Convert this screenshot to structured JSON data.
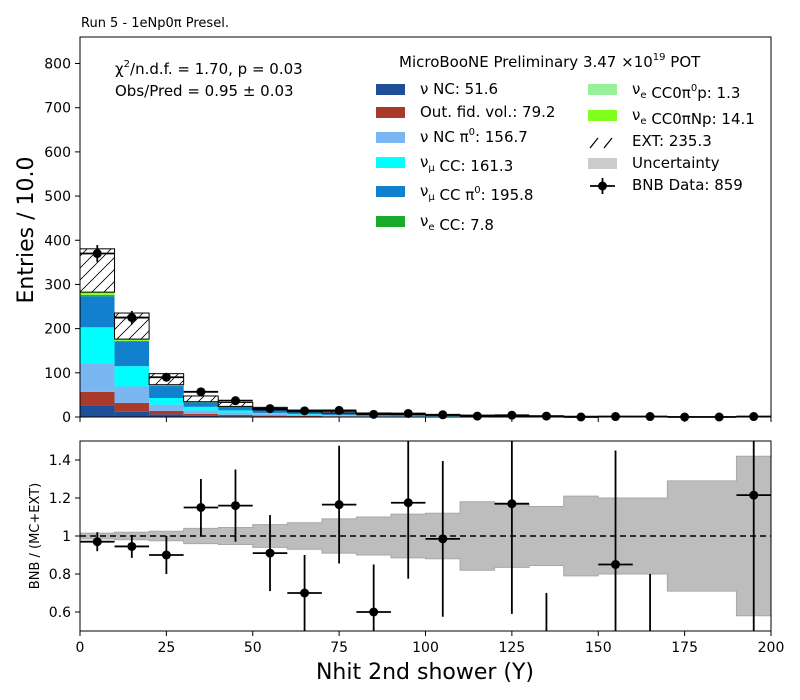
{
  "figure": {
    "run_label": "Run 5 - 1eNp0π Presel.",
    "pot_label": "MicroBooNE Preliminary 3.47 ×10",
    "pot_exponent": "19",
    "pot_unit": " POT",
    "chi2_prefix": "χ",
    "chi2_sup": "2",
    "chi2_rest": "/n.d.f. = 1.70, p = 0.03",
    "obs_pred": "Obs/Pred = 0.95 ± 0.03"
  },
  "chart_data": [
    {
      "type": "bar",
      "stacked": true,
      "ylabel": "Entries / 10.0",
      "xlim": [
        0,
        200
      ],
      "ylim": [
        0,
        860
      ],
      "xticks": [
        0,
        25,
        50,
        75,
        100,
        125,
        150,
        175,
        200
      ],
      "yticks": [
        0,
        100,
        200,
        300,
        400,
        500,
        600,
        700,
        800
      ],
      "bin_edges": [
        0,
        10,
        20,
        30,
        40,
        50,
        60,
        70,
        80,
        90,
        100,
        110,
        120,
        130,
        140,
        150,
        160,
        170,
        180,
        190,
        200
      ],
      "series": [
        {
          "name": "ν NC: 51.6",
          "color": "#1f4e98",
          "values": [
            25,
            12,
            6,
            3,
            2,
            1.2,
            0.8,
            0.5,
            0.4,
            0.3,
            0.2,
            0.1,
            0.1,
            0.1,
            0,
            0,
            0,
            0,
            0,
            0
          ]
        },
        {
          "name": "Out. fid. vol.: 79.2",
          "color": "#a8392b",
          "values": [
            32,
            20,
            8,
            4,
            3,
            2,
            1.5,
            1.2,
            0.9,
            0.7,
            0.5,
            0.4,
            0.3,
            0.2,
            0.2,
            0.1,
            0.1,
            0.1,
            0.1,
            0.1
          ]
        },
        {
          "name": "ν NC π0: 156.7",
          "color": "#7ab6f2",
          "values": [
            64,
            37,
            14,
            8,
            5,
            3.5,
            2.5,
            2,
            1.5,
            1.2,
            0.9,
            0.7,
            0.5,
            0.4,
            0.3,
            0.2,
            0.2,
            0.1,
            0.1,
            0.1
          ]
        },
        {
          "name": "νμ CC: 161.3",
          "color": "#00ffff",
          "values": [
            82,
            46,
            15,
            8,
            5,
            2.5,
            1.5,
            1,
            0.7,
            0.5,
            0.4,
            0.3,
            0.2,
            0.2,
            0.1,
            0.1,
            0,
            0,
            0,
            0
          ]
        },
        {
          "name": "νμ CC π0: 195.8",
          "color": "#1181cf",
          "values": [
            70,
            55,
            27,
            10,
            8,
            6,
            5,
            4,
            3,
            2.5,
            2,
            1.5,
            1.2,
            0.8,
            0.5,
            0.3,
            0.2,
            0.1,
            0.1,
            0.1
          ]
        },
        {
          "name": "νe CC: 7.8",
          "color": "#1aab2a",
          "values": [
            3,
            2,
            1,
            0.5,
            0.4,
            0.3,
            0.2,
            0.1,
            0.1,
            0.1,
            0,
            0,
            0,
            0,
            0,
            0,
            0,
            0,
            0,
            0
          ]
        },
        {
          "name": "νe CC0π0p: 1.3",
          "color": "#98f098",
          "values": [
            0.6,
            0.3,
            0.1,
            0.1,
            0.1,
            0.1,
            0,
            0,
            0,
            0,
            0,
            0,
            0,
            0,
            0,
            0,
            0,
            0,
            0,
            0
          ]
        },
        {
          "name": "νe CC0πNp: 14.1",
          "color": "#82ff1e",
          "values": [
            6,
            4,
            2,
            1,
            0.5,
            0.3,
            0.2,
            0.1,
            0,
            0,
            0,
            0,
            0,
            0,
            0,
            0,
            0,
            0,
            0,
            0
          ]
        },
        {
          "name": "EXT: 235.3",
          "color": "hatch",
          "values": [
            98,
            59,
            25,
            13,
            9,
            6,
            4,
            3,
            2.5,
            2,
            1.5,
            1.3,
            1,
            0.8,
            0.6,
            0.5,
            0.4,
            0.3,
            0.2,
            0.2
          ]
        }
      ],
      "data": {
        "name": "BNB Data: 859",
        "x": [
          5,
          15,
          25,
          35,
          45,
          55,
          65,
          75,
          85,
          95,
          105,
          115,
          125,
          135,
          145,
          155,
          165,
          175,
          185,
          195
        ],
        "y": [
          370,
          225,
          90,
          57,
          37,
          19,
          14,
          15,
          6,
          8,
          5,
          2,
          4,
          2,
          0,
          1,
          1,
          0,
          0,
          1
        ],
        "err": [
          19,
          15,
          9.5,
          7.5,
          6,
          4.4,
          3.7,
          3.9,
          2.4,
          2.8,
          2.2,
          1.4,
          2,
          1.4,
          0,
          1,
          1,
          0,
          0,
          1
        ]
      },
      "legend": [
        {
          "label": "ν NC: 51.6",
          "kind": "patch",
          "color": "#1f4e98"
        },
        {
          "label": "Out. fid. vol.: 79.2",
          "kind": "patch",
          "color": "#a8392b"
        },
        {
          "label": "ν NC π0: 156.7",
          "kind": "patch",
          "color": "#7ab6f2"
        },
        {
          "label": "νμ CC: 161.3",
          "kind": "patch",
          "color": "#00ffff"
        },
        {
          "label": "νμ CC π0: 195.8",
          "kind": "patch",
          "color": "#1181cf"
        },
        {
          "label": "νe CC: 7.8",
          "kind": "patch",
          "color": "#1aab2a"
        },
        {
          "label": "νe CC0π0p: 1.3",
          "kind": "patch",
          "color": "#98f098"
        },
        {
          "label": "νe CC0πNp: 14.1",
          "kind": "patch",
          "color": "#82ff1e"
        },
        {
          "label": "EXT: 235.3",
          "kind": "hatch",
          "color": "#ffffff"
        },
        {
          "label": "Uncertainty",
          "kind": "patch",
          "color": "#cccccc"
        },
        {
          "label": "BNB Data: 859",
          "kind": "errorbar",
          "color": "#000000"
        }
      ]
    },
    {
      "type": "scatter",
      "xlabel": "Nhit 2nd shower (Y)",
      "ylabel": "BNB / (MC+EXT)",
      "xlim": [
        0,
        200
      ],
      "ylim": [
        0.5,
        1.5
      ],
      "xticks": [
        0,
        25,
        50,
        75,
        100,
        125,
        150,
        175,
        200
      ],
      "yticks": [
        0.6,
        0.8,
        1.0,
        1.2,
        1.4
      ],
      "reference_line": 1.0,
      "uncertainty_band": {
        "bin_edges": [
          0,
          10,
          20,
          30,
          40,
          50,
          60,
          70,
          80,
          90,
          100,
          110,
          120,
          130,
          140,
          150,
          160,
          170,
          180,
          190,
          200
        ],
        "low": [
          0.985,
          0.98,
          0.975,
          0.96,
          0.955,
          0.94,
          0.93,
          0.91,
          0.9,
          0.885,
          0.88,
          0.82,
          0.835,
          0.845,
          0.79,
          0.8,
          0.8,
          0.71,
          0.71,
          0.58
        ],
        "high": [
          1.015,
          1.02,
          1.025,
          1.04,
          1.045,
          1.06,
          1.07,
          1.09,
          1.1,
          1.115,
          1.12,
          1.18,
          1.165,
          1.155,
          1.21,
          1.2,
          1.2,
          1.29,
          1.29,
          1.42
        ]
      },
      "points": [
        {
          "x": 5,
          "y": 0.97,
          "err": 0.05
        },
        {
          "x": 15,
          "y": 0.945,
          "err": 0.06
        },
        {
          "x": 25,
          "y": 0.9,
          "err": 0.1
        },
        {
          "x": 35,
          "y": 1.15,
          "err": 0.15
        },
        {
          "x": 45,
          "y": 1.16,
          "err": 0.19
        },
        {
          "x": 55,
          "y": 0.91,
          "err": 0.2
        },
        {
          "x": 65,
          "y": 0.7,
          "err": 0.2
        },
        {
          "x": 75,
          "y": 1.165,
          "err": 0.31
        },
        {
          "x": 85,
          "y": 0.6,
          "err": 0.25
        },
        {
          "x": 95,
          "y": 1.175,
          "err": 0.4
        },
        {
          "x": 105,
          "y": 0.985,
          "err": 0.41
        },
        {
          "x": 125,
          "y": 1.17,
          "err": 0.58
        },
        {
          "x": 135,
          "y": null,
          "err": null,
          "bar_low": 0.5,
          "bar_high": 0.7
        },
        {
          "x": 155,
          "y": 0.85,
          "err": 0.6
        },
        {
          "x": 165,
          "y": null,
          "err": null,
          "bar_low": 0.5,
          "bar_high": 0.8
        },
        {
          "x": 195,
          "y": 1.215,
          "err": 0.8
        }
      ]
    }
  ]
}
